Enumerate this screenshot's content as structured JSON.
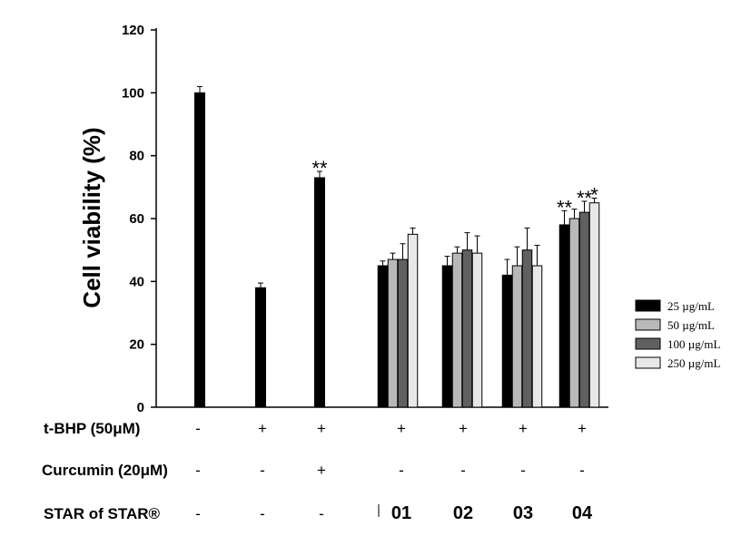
{
  "chart_data": {
    "type": "bar",
    "title": "",
    "xlabel": "",
    "ylabel": "Cell viability (%)",
    "ylim": [
      0,
      120
    ],
    "yticks": [
      "0",
      "20",
      "40",
      "60",
      "80",
      "100",
      "120"
    ],
    "grid": false,
    "legend_position": "right",
    "colors": {
      "single": "#000000",
      "25": "#000000",
      "50": "#b8b8b8",
      "100": "#606060",
      "250": "#e8e8e8"
    },
    "single_groups": [
      {
        "value": 100,
        "error": 2,
        "significance": ""
      },
      {
        "value": 38,
        "error": 1.5,
        "significance": ""
      },
      {
        "value": 73,
        "error": 2,
        "significance": "**"
      }
    ],
    "sample_groups": [
      "01",
      "02",
      "03",
      "04"
    ],
    "series": [
      {
        "name": "25 µg/mL",
        "key": "25",
        "values": [
          45,
          45,
          42,
          58
        ],
        "errors": [
          1.5,
          3,
          5,
          4.5
        ],
        "significance": [
          "",
          "",
          "",
          "**"
        ]
      },
      {
        "name": "50  µg/mL",
        "key": "50",
        "values": [
          47,
          49,
          45,
          60
        ],
        "errors": [
          2,
          2,
          6,
          3
        ],
        "significance": [
          "",
          "",
          "",
          ""
        ]
      },
      {
        "name": "100 µg/mL",
        "key": "100",
        "values": [
          47,
          50,
          50,
          62
        ],
        "errors": [
          5,
          5.5,
          7,
          3.5
        ],
        "significance": [
          "",
          "",
          "",
          "**"
        ]
      },
      {
        "name": "250 µg/mL",
        "key": "250",
        "values": [
          55,
          49,
          45,
          65
        ],
        "errors": [
          2,
          5.5,
          6.5,
          1.5
        ],
        "significance": [
          "",
          "",
          "",
          "*"
        ]
      }
    ],
    "rows": [
      {
        "label": "t-BHP (50μM)",
        "values": [
          "-",
          "+",
          "+",
          "+",
          "+",
          "+",
          "+"
        ]
      },
      {
        "label": "Curcumin (20μM)",
        "values": [
          "-",
          "-",
          "+",
          "-",
          "-",
          "-",
          "-"
        ]
      },
      {
        "label": "STAR of STAR®",
        "values": [
          "-",
          "-",
          "-",
          "01",
          "02",
          "03",
          "04"
        ]
      }
    ]
  }
}
